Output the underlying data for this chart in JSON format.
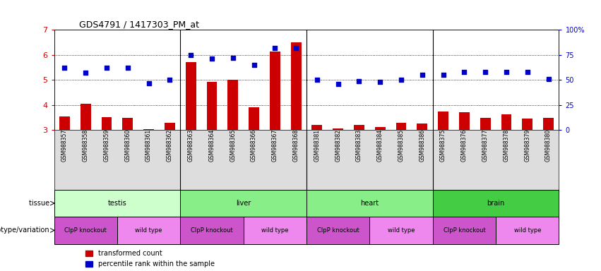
{
  "title": "GDS4791 / 1417303_PM_at",
  "samples": [
    "GSM988357",
    "GSM988358",
    "GSM988359",
    "GSM988360",
    "GSM988361",
    "GSM988362",
    "GSM988363",
    "GSM988364",
    "GSM988365",
    "GSM988366",
    "GSM988367",
    "GSM988368",
    "GSM988381",
    "GSM988382",
    "GSM988383",
    "GSM988384",
    "GSM988385",
    "GSM988386",
    "GSM988375",
    "GSM988376",
    "GSM988377",
    "GSM988378",
    "GSM988379",
    "GSM988380"
  ],
  "transformed_count": [
    3.55,
    4.05,
    3.52,
    3.48,
    3.05,
    3.28,
    5.72,
    4.92,
    5.02,
    3.9,
    6.12,
    6.5,
    3.22,
    3.07,
    3.22,
    3.13,
    3.28,
    3.27,
    3.73,
    3.72,
    3.5,
    3.63,
    3.47,
    3.5
  ],
  "percentile_rank": [
    62,
    57,
    62,
    62,
    47,
    50,
    75,
    71,
    72,
    65,
    82,
    82,
    50,
    46,
    49,
    48,
    50,
    55,
    55,
    58,
    58,
    58,
    58,
    51
  ],
  "ylim_left": [
    3,
    7
  ],
  "ylim_right": [
    0,
    100
  ],
  "yticks_left": [
    3,
    4,
    5,
    6,
    7
  ],
  "yticks_right": [
    0,
    25,
    50,
    75,
    100
  ],
  "bar_color": "#cc0000",
  "dot_color": "#0000cc",
  "grid_color": "#000000",
  "tissue_groups": [
    {
      "label": "testis",
      "start": 0,
      "end": 6,
      "color": "#ccffcc"
    },
    {
      "label": "liver",
      "start": 6,
      "end": 12,
      "color": "#88ee88"
    },
    {
      "label": "heart",
      "start": 12,
      "end": 18,
      "color": "#88ee88"
    },
    {
      "label": "brain",
      "start": 18,
      "end": 24,
      "color": "#44cc44"
    }
  ],
  "genotype_groups": [
    {
      "label": "ClpP knockout",
      "start": 0,
      "end": 3,
      "color": "#cc55cc"
    },
    {
      "label": "wild type",
      "start": 3,
      "end": 6,
      "color": "#ee88ee"
    },
    {
      "label": "ClpP knockout",
      "start": 6,
      "end": 9,
      "color": "#cc55cc"
    },
    {
      "label": "wild type",
      "start": 9,
      "end": 12,
      "color": "#ee88ee"
    },
    {
      "label": "ClpP knockout",
      "start": 12,
      "end": 15,
      "color": "#cc55cc"
    },
    {
      "label": "wild type",
      "start": 15,
      "end": 18,
      "color": "#ee88ee"
    },
    {
      "label": "ClpP knockout",
      "start": 18,
      "end": 21,
      "color": "#cc55cc"
    },
    {
      "label": "wild type",
      "start": 21,
      "end": 24,
      "color": "#ee88ee"
    }
  ],
  "tissue_label": "tissue",
  "genotype_label": "genotype/variation",
  "legend_bar": "transformed count",
  "legend_dot": "percentile rank within the sample",
  "bg_color": "#ffffff",
  "plot_bg": "#ffffff"
}
